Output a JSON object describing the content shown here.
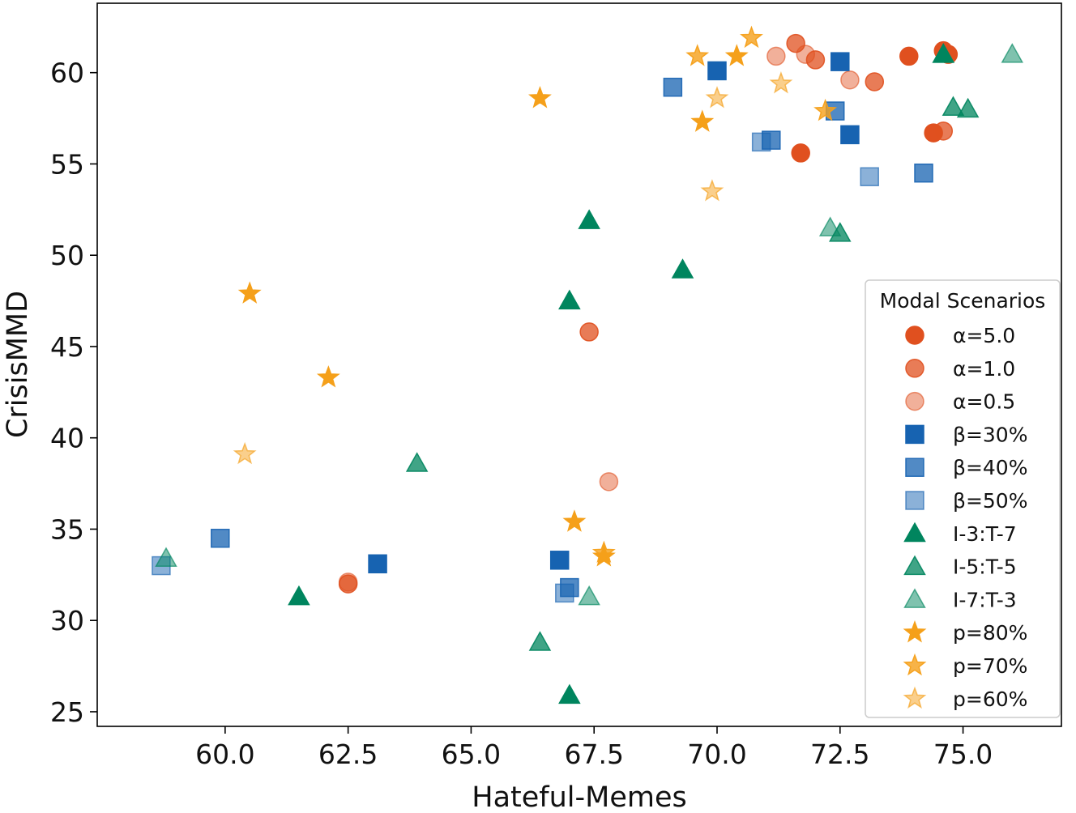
{
  "chart_data": {
    "type": "scatter",
    "xlabel": "Hateful-Memes",
    "ylabel": "CrisisMMD",
    "xlim": [
      57.4,
      77.0
    ],
    "ylim": [
      24.2,
      63.8
    ],
    "xticks": [
      60.0,
      62.5,
      65.0,
      67.5,
      70.0,
      72.5,
      75.0
    ],
    "xtick_labels": [
      "60.0",
      "62.5",
      "65.0",
      "67.5",
      "70.0",
      "72.5",
      "75.0"
    ],
    "yticks": [
      25,
      30,
      35,
      40,
      45,
      50,
      55,
      60
    ],
    "ytick_labels": [
      "25",
      "30",
      "35",
      "40",
      "45",
      "50",
      "55",
      "60"
    ],
    "grid": false,
    "legend": {
      "title": "Modal Scenarios",
      "placement": "lower-right"
    },
    "series": [
      {
        "name": "α=5.0",
        "marker": "circle",
        "color": "#E0501F",
        "opacity": 1.0,
        "points": [
          [
            74.6,
            61.2
          ],
          [
            74.7,
            61.0
          ],
          [
            73.9,
            60.9
          ],
          [
            71.7,
            55.6
          ],
          [
            74.4,
            56.7
          ]
        ]
      },
      {
        "name": "α=1.0",
        "marker": "circle",
        "color": "#E0501F",
        "opacity": 0.75,
        "points": [
          [
            71.6,
            61.6
          ],
          [
            72.0,
            60.7
          ],
          [
            73.2,
            59.5
          ],
          [
            74.6,
            56.8
          ],
          [
            67.4,
            45.8
          ],
          [
            62.5,
            32.0
          ]
        ]
      },
      {
        "name": "α=0.5",
        "marker": "circle",
        "color": "#E0501F",
        "opacity": 0.45,
        "points": [
          [
            71.2,
            60.9
          ],
          [
            71.8,
            61.0
          ],
          [
            72.7,
            59.6
          ],
          [
            67.8,
            37.6
          ],
          [
            62.5,
            32.1
          ]
        ]
      },
      {
        "name": "β=30%",
        "marker": "square",
        "color": "#1763B1",
        "opacity": 1.0,
        "points": [
          [
            72.5,
            60.6
          ],
          [
            70.0,
            60.1
          ],
          [
            72.7,
            56.6
          ],
          [
            63.1,
            33.1
          ],
          [
            66.8,
            33.3
          ]
        ]
      },
      {
        "name": "β=40%",
        "marker": "square",
        "color": "#1763B1",
        "opacity": 0.75,
        "points": [
          [
            69.1,
            59.2
          ],
          [
            72.4,
            57.9
          ],
          [
            71.1,
            56.3
          ],
          [
            74.2,
            54.5
          ],
          [
            59.9,
            34.5
          ],
          [
            67.0,
            31.8
          ]
        ]
      },
      {
        "name": "β=50%",
        "marker": "square",
        "color": "#1763B1",
        "opacity": 0.5,
        "points": [
          [
            70.9,
            56.2
          ],
          [
            73.1,
            54.3
          ],
          [
            58.7,
            33.0
          ],
          [
            66.9,
            31.5
          ]
        ]
      },
      {
        "name": "I-3:T-7",
        "marker": "triangle",
        "color": "#00855E",
        "opacity": 1.0,
        "points": [
          [
            74.6,
            61.0
          ],
          [
            67.4,
            51.9
          ],
          [
            69.3,
            49.2
          ],
          [
            67.0,
            47.5
          ],
          [
            61.5,
            31.3
          ],
          [
            67.0,
            25.9
          ]
        ]
      },
      {
        "name": "I-5:T-5",
        "marker": "triangle",
        "color": "#00855E",
        "opacity": 0.75,
        "points": [
          [
            74.8,
            58.1
          ],
          [
            75.1,
            58.0
          ],
          [
            72.5,
            51.2
          ],
          [
            63.9,
            38.6
          ],
          [
            66.4,
            28.8
          ]
        ]
      },
      {
        "name": "I-7:T-3",
        "marker": "triangle",
        "color": "#00855E",
        "opacity": 0.5,
        "points": [
          [
            76.0,
            61.0
          ],
          [
            74.6,
            61.0
          ],
          [
            72.3,
            51.5
          ],
          [
            58.8,
            33.4
          ],
          [
            67.4,
            31.3
          ]
        ]
      },
      {
        "name": "p=80%",
        "marker": "star",
        "color": "#F5A01A",
        "opacity": 1.0,
        "points": [
          [
            70.4,
            60.9
          ],
          [
            66.4,
            58.6
          ],
          [
            69.7,
            57.3
          ],
          [
            60.5,
            47.9
          ],
          [
            62.1,
            43.3
          ],
          [
            67.1,
            35.4
          ],
          [
            67.7,
            33.5
          ]
        ]
      },
      {
        "name": "p=70%",
        "marker": "star",
        "color": "#F5A01A",
        "opacity": 0.8,
        "points": [
          [
            70.7,
            61.9
          ],
          [
            69.6,
            60.9
          ],
          [
            72.2,
            57.9
          ],
          [
            67.7,
            33.7
          ]
        ]
      },
      {
        "name": "p=60%",
        "marker": "star",
        "color": "#F5A01A",
        "opacity": 0.5,
        "points": [
          [
            71.3,
            59.4
          ],
          [
            70.0,
            58.6
          ],
          [
            69.9,
            53.5
          ],
          [
            60.4,
            39.1
          ]
        ]
      }
    ]
  }
}
